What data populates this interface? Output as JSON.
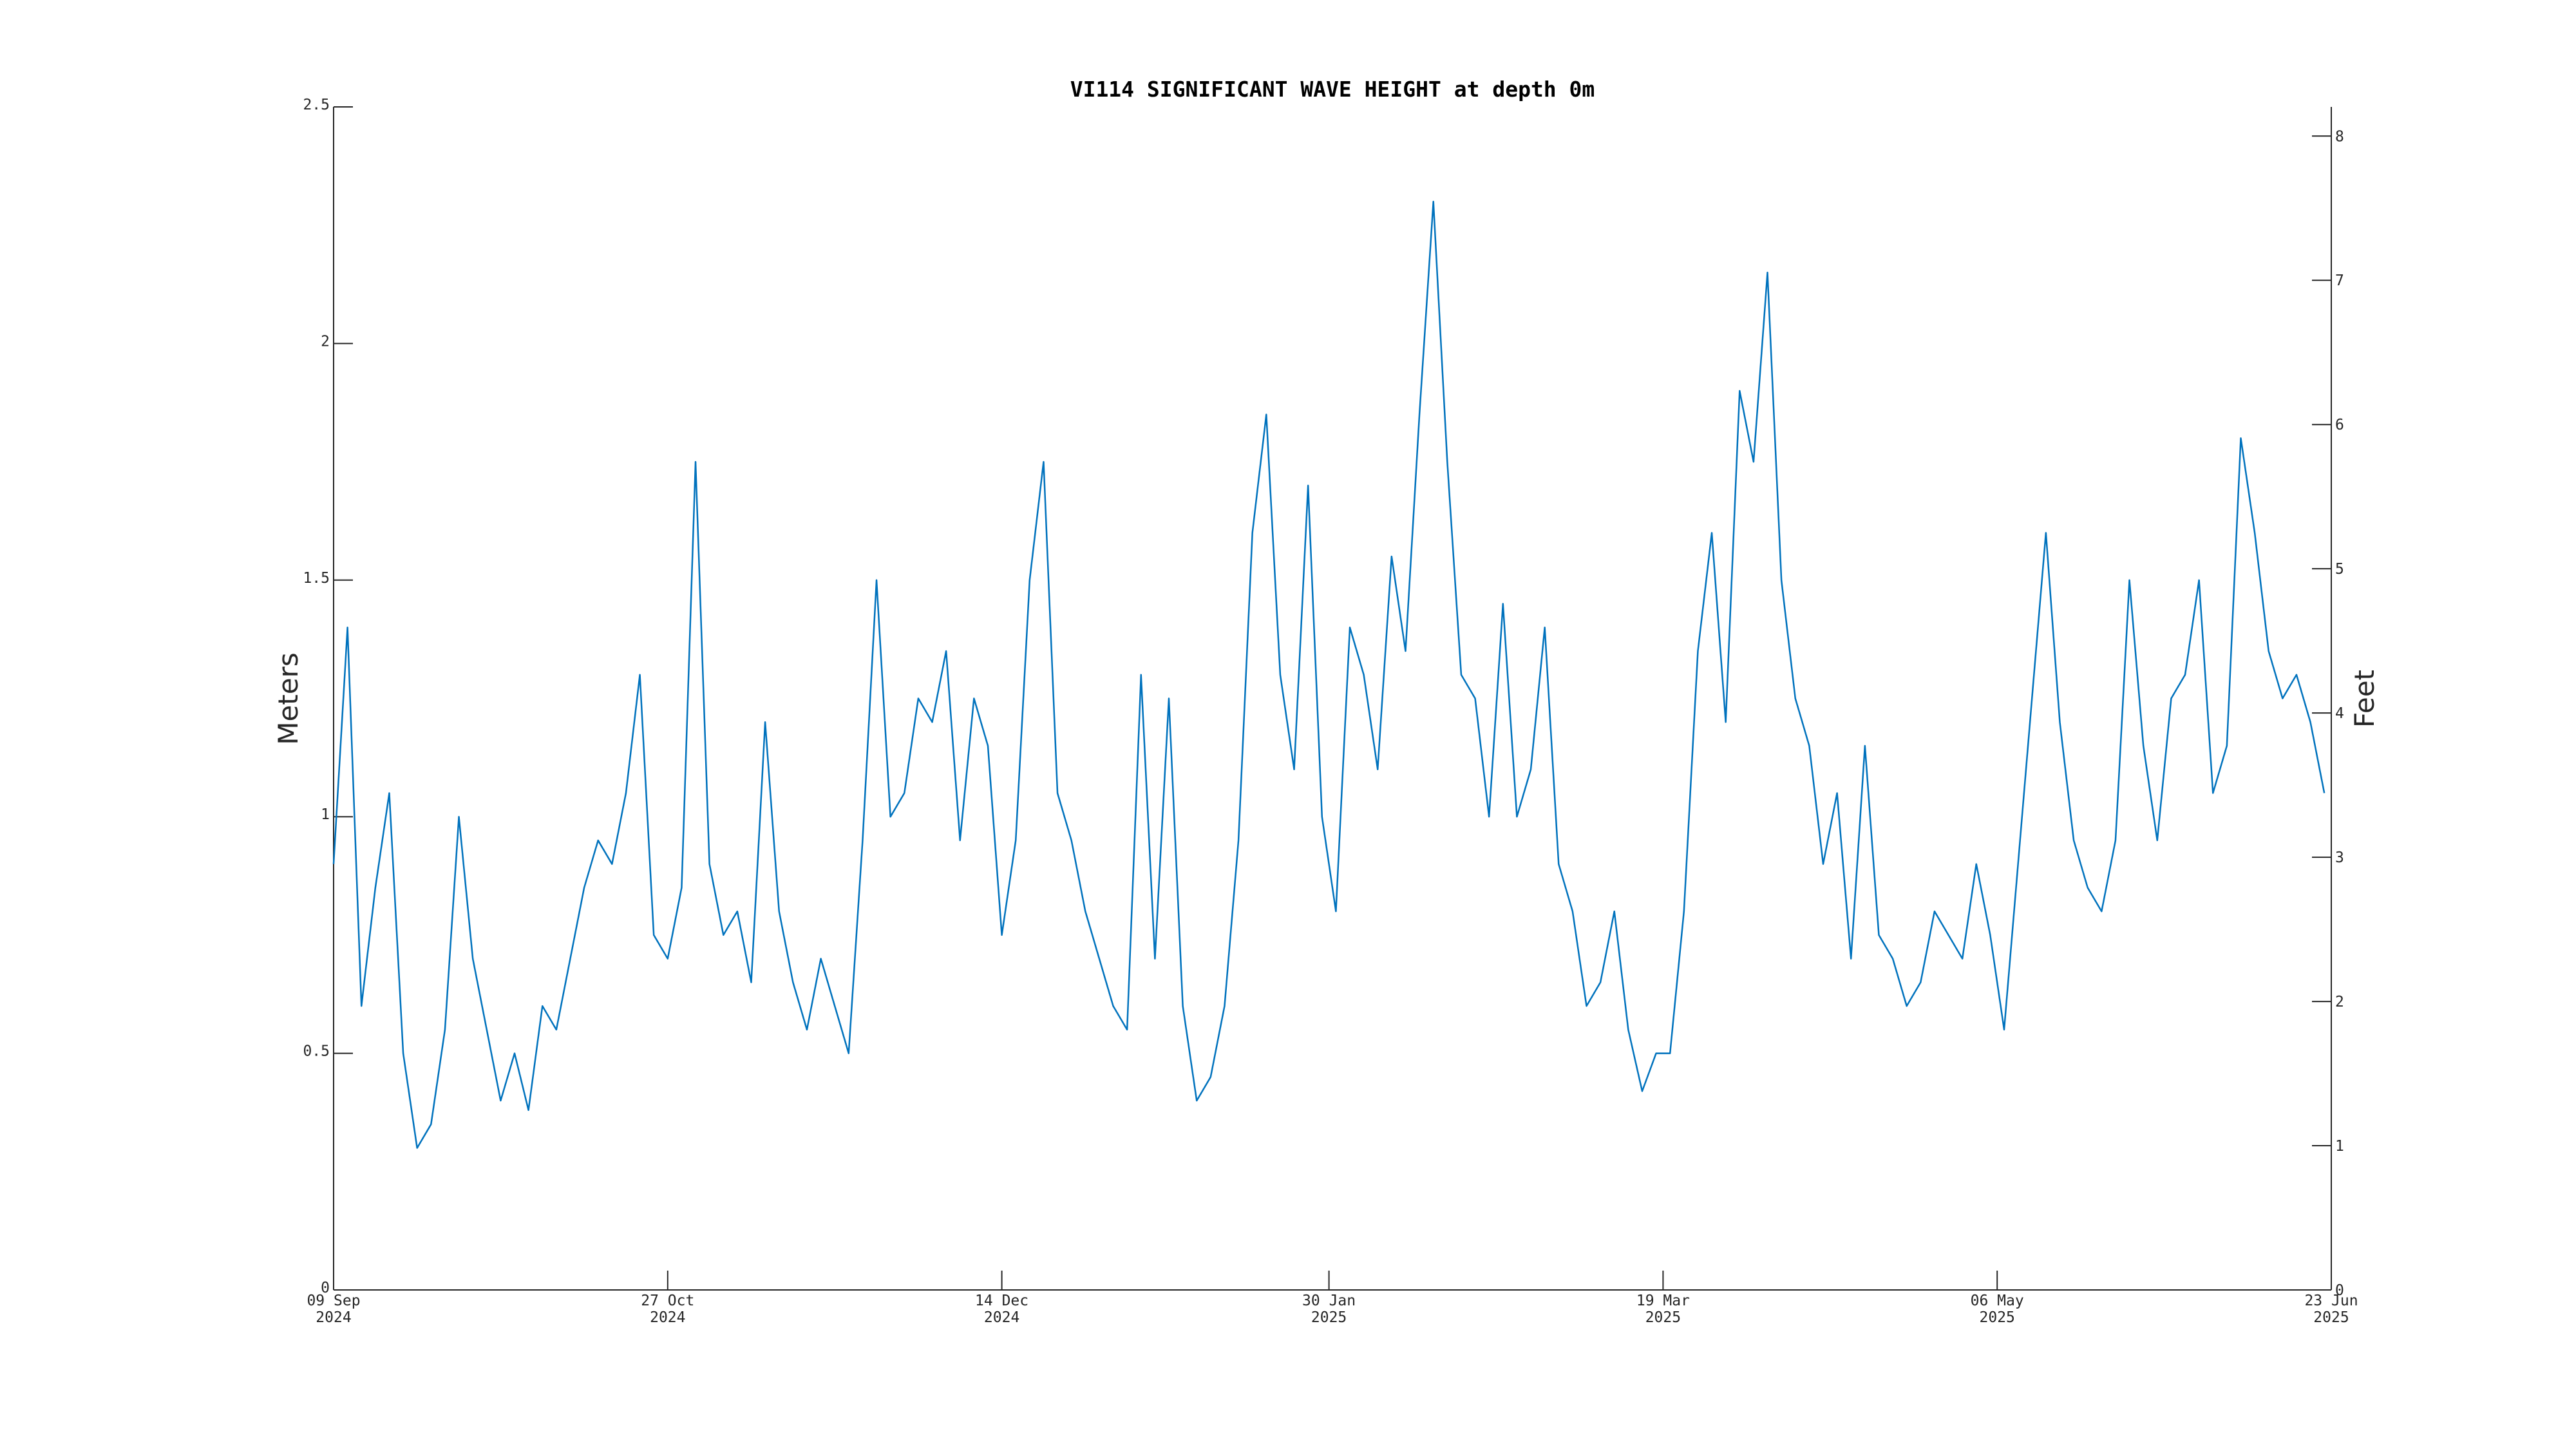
{
  "chart_data": {
    "type": "line",
    "title": "VI114 SIGNIFICANT WAVE HEIGHT at depth 0m",
    "ylabel": "Meters",
    "y2label": "Feet",
    "x": [
      "2024-09-09",
      "2024-09-11",
      "2024-09-13",
      "2024-09-15",
      "2024-09-17",
      "2024-09-19",
      "2024-09-21",
      "2024-09-23",
      "2024-09-25",
      "2024-09-27",
      "2024-09-29",
      "2024-10-01",
      "2024-10-03",
      "2024-10-05",
      "2024-10-07",
      "2024-10-09",
      "2024-10-11",
      "2024-10-13",
      "2024-10-15",
      "2024-10-17",
      "2024-10-19",
      "2024-10-21",
      "2024-10-23",
      "2024-10-25",
      "2024-10-27",
      "2024-10-29",
      "2024-10-31",
      "2024-11-02",
      "2024-11-04",
      "2024-11-06",
      "2024-11-08",
      "2024-11-10",
      "2024-11-12",
      "2024-11-14",
      "2024-11-16",
      "2024-11-18",
      "2024-11-20",
      "2024-11-22",
      "2024-11-24",
      "2024-11-26",
      "2024-11-28",
      "2024-11-30",
      "2024-12-02",
      "2024-12-04",
      "2024-12-06",
      "2024-12-08",
      "2024-12-10",
      "2024-12-12",
      "2024-12-14",
      "2024-12-16",
      "2024-12-18",
      "2024-12-20",
      "2024-12-22",
      "2024-12-24",
      "2024-12-26",
      "2024-12-28",
      "2024-12-30",
      "2025-01-01",
      "2025-01-03",
      "2025-01-05",
      "2025-01-07",
      "2025-01-09",
      "2025-01-11",
      "2025-01-13",
      "2025-01-15",
      "2025-01-17",
      "2025-01-19",
      "2025-01-21",
      "2025-01-23",
      "2025-01-25",
      "2025-01-27",
      "2025-01-29",
      "2025-01-31",
      "2025-02-02",
      "2025-02-04",
      "2025-02-06",
      "2025-02-08",
      "2025-02-10",
      "2025-02-12",
      "2025-02-14",
      "2025-02-16",
      "2025-02-18",
      "2025-02-20",
      "2025-02-22",
      "2025-02-24",
      "2025-02-26",
      "2025-02-28",
      "2025-03-02",
      "2025-03-04",
      "2025-03-06",
      "2025-03-08",
      "2025-03-10",
      "2025-03-12",
      "2025-03-14",
      "2025-03-16",
      "2025-03-18",
      "2025-03-20",
      "2025-03-22",
      "2025-03-24",
      "2025-03-26",
      "2025-03-28",
      "2025-03-30",
      "2025-04-01",
      "2025-04-03",
      "2025-04-05",
      "2025-04-07",
      "2025-04-09",
      "2025-04-11",
      "2025-04-13",
      "2025-04-15",
      "2025-04-17",
      "2025-04-19",
      "2025-04-21",
      "2025-04-23",
      "2025-04-25",
      "2025-04-27",
      "2025-04-29",
      "2025-05-01",
      "2025-05-03",
      "2025-05-05",
      "2025-05-07",
      "2025-05-09",
      "2025-05-11",
      "2025-05-13",
      "2025-05-15",
      "2025-05-17",
      "2025-05-19",
      "2025-05-21",
      "2025-05-23",
      "2025-05-25",
      "2025-05-27",
      "2025-05-29",
      "2025-05-31",
      "2025-06-02",
      "2025-06-04",
      "2025-06-06",
      "2025-06-08",
      "2025-06-10",
      "2025-06-12",
      "2025-06-14",
      "2025-06-16",
      "2025-06-18",
      "2025-06-20",
      "2025-06-22"
    ],
    "series": [
      {
        "color": "#0072bd",
        "values": [
          0.9,
          1.4,
          0.6,
          0.85,
          1.05,
          0.5,
          0.3,
          0.35,
          0.55,
          1.0,
          0.7,
          0.55,
          0.4,
          0.5,
          0.38,
          0.6,
          0.55,
          0.7,
          0.85,
          0.95,
          0.9,
          1.05,
          1.3,
          0.75,
          0.7,
          0.85,
          1.75,
          0.9,
          0.75,
          0.8,
          0.65,
          1.2,
          0.8,
          0.65,
          0.55,
          0.7,
          0.6,
          0.5,
          0.95,
          1.5,
          1.0,
          1.05,
          1.25,
          1.2,
          1.35,
          0.95,
          1.25,
          1.15,
          0.75,
          0.95,
          1.5,
          1.75,
          1.05,
          0.95,
          0.8,
          0.7,
          0.6,
          0.55,
          1.3,
          0.7,
          1.25,
          0.6,
          0.4,
          0.45,
          0.6,
          0.95,
          1.6,
          1.85,
          1.3,
          1.1,
          1.7,
          1.0,
          0.8,
          1.4,
          1.3,
          1.1,
          1.55,
          1.35,
          1.85,
          2.3,
          1.75,
          1.3,
          1.25,
          1.0,
          1.45,
          1.0,
          1.1,
          1.4,
          0.9,
          0.8,
          0.6,
          0.65,
          0.8,
          0.55,
          0.42,
          0.5,
          0.5,
          0.8,
          1.35,
          1.6,
          1.2,
          1.9,
          1.75,
          2.15,
          1.5,
          1.25,
          1.15,
          0.9,
          1.05,
          0.7,
          1.15,
          0.75,
          0.7,
          0.6,
          0.65,
          0.8,
          0.75,
          0.7,
          0.9,
          0.75,
          0.55,
          0.9,
          1.25,
          1.6,
          1.2,
          0.95,
          0.85,
          0.8,
          0.95,
          1.5,
          1.15,
          0.95,
          1.25,
          1.3,
          1.5,
          1.05,
          1.15,
          1.8,
          1.6,
          1.35,
          1.25,
          1.3,
          1.2,
          1.05
        ]
      }
    ],
    "xlim": [
      "2024-09-09",
      "2025-06-23"
    ],
    "xticks": [
      {
        "value": "2024-09-09",
        "label": [
          "09 Sep",
          "2024"
        ]
      },
      {
        "value": "2024-10-27",
        "label": [
          "27 Oct",
          "2024"
        ]
      },
      {
        "value": "2024-12-14",
        "label": [
          "14 Dec",
          "2024"
        ]
      },
      {
        "value": "2025-01-30",
        "label": [
          "30 Jan",
          "2025"
        ]
      },
      {
        "value": "2025-03-19",
        "label": [
          "19 Mar",
          "2025"
        ]
      },
      {
        "value": "2025-05-06",
        "label": [
          "06 May",
          "2025"
        ]
      },
      {
        "value": "2025-06-23",
        "label": [
          "23 Jun",
          "2025"
        ]
      }
    ],
    "ylim": [
      0,
      2.5
    ],
    "yticks": [
      0,
      0.5,
      1,
      1.5,
      2,
      2.5
    ],
    "y2lim": [
      0,
      8.2021
    ],
    "y2ticks": [
      0,
      1,
      2,
      3,
      4,
      5,
      6,
      7,
      8
    ]
  }
}
